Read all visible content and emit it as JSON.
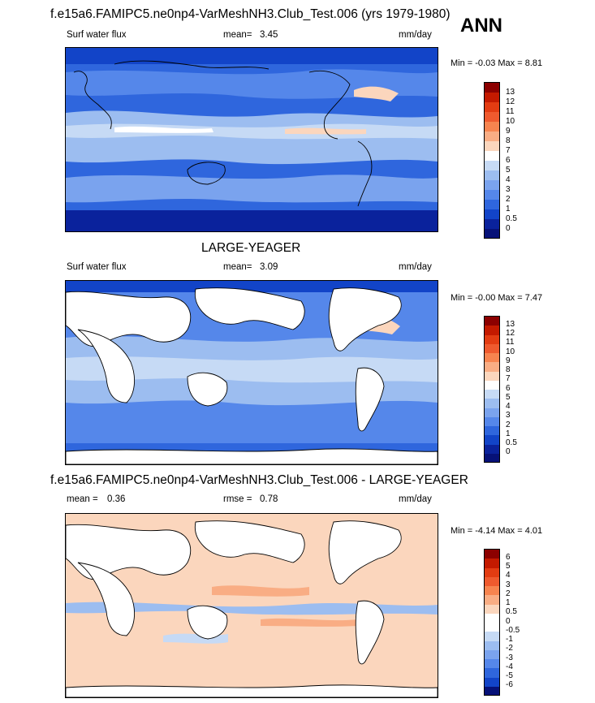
{
  "header": {
    "title": "f.e15a6.FAMIPC5.ne0np4-VarMeshNH3.Club_Test.006 (yrs 1979-1980)",
    "season": "ANN"
  },
  "panels": [
    {
      "field": "Surf water flux",
      "mean_label": "mean=",
      "mean_value": "3.45",
      "units": "mm/day",
      "minmax": "Min =  -0.03 Max =   8.81",
      "levels": [
        "13",
        "12",
        "11",
        "10",
        "9",
        "8",
        "7",
        "6",
        "5",
        "4",
        "3",
        "2",
        "1",
        "0.5",
        "0"
      ],
      "colors": [
        "#8c0000",
        "#c41a00",
        "#e33c12",
        "#ef5a2e",
        "#f7844f",
        "#f9ad84",
        "#fbd6bd",
        "#ffffff",
        "#c6daf5",
        "#9cbdf0",
        "#7aa3ee",
        "#5587ea",
        "#2f66dd",
        "#1244c8",
        "#0a229c",
        "#061178"
      ]
    },
    {
      "subtitle": "LARGE-YEAGER",
      "field": "Surf water flux",
      "mean_label": "mean=",
      "mean_value": "3.09",
      "units": "mm/day",
      "minmax": "Min =  -0.00 Max =   7.47",
      "levels": [
        "13",
        "12",
        "11",
        "10",
        "9",
        "8",
        "7",
        "6",
        "5",
        "4",
        "3",
        "2",
        "1",
        "0.5",
        "0"
      ],
      "colors": [
        "#8c0000",
        "#c41a00",
        "#e33c12",
        "#ef5a2e",
        "#f7844f",
        "#f9ad84",
        "#fbd6bd",
        "#ffffff",
        "#c6daf5",
        "#9cbdf0",
        "#7aa3ee",
        "#5587ea",
        "#2f66dd",
        "#1244c8",
        "#0a229c",
        "#061178"
      ]
    },
    {
      "title": "f.e15a6.FAMIPC5.ne0np4-VarMeshNH3.Club_Test.006 - LARGE-YEAGER",
      "mean_label": "mean =",
      "mean_value": "0.36",
      "rmse_label": "rmse =",
      "rmse_value": "0.78",
      "units": "mm/day",
      "minmax": "Min =  -4.14 Max =   4.01",
      "levels": [
        "6",
        "5",
        "4",
        "3",
        "2",
        "1",
        "0.5",
        "0",
        "-0.5",
        "-1",
        "-2",
        "-3",
        "-4",
        "-5",
        "-6"
      ],
      "colors": [
        "#8c0000",
        "#c41a00",
        "#e33c12",
        "#ef5a2e",
        "#f7844f",
        "#f9ad84",
        "#fbd6bd",
        "#ffffff",
        "#ffffff",
        "#c6daf5",
        "#9cbdf0",
        "#7aa3ee",
        "#5587ea",
        "#2f66dd",
        "#1244c8",
        "#061178"
      ]
    }
  ],
  "chart_data": [
    {
      "type": "heatmap",
      "title": "f.e15a6.FAMIPC5.ne0np4-VarMeshNH3.Club_Test.006 (yrs 1979-1980)",
      "variable": "Surf water flux",
      "units": "mm/day",
      "mean": 3.45,
      "min": -0.03,
      "max": 8.81,
      "contour_levels": [
        0,
        0.5,
        1,
        2,
        3,
        4,
        5,
        6,
        7,
        8,
        9,
        10,
        11,
        12,
        13
      ]
    },
    {
      "type": "heatmap",
      "title": "LARGE-YEAGER",
      "variable": "Surf water flux",
      "units": "mm/day",
      "mean": 3.09,
      "min": -0.0,
      "max": 7.47,
      "contour_levels": [
        0,
        0.5,
        1,
        2,
        3,
        4,
        5,
        6,
        7,
        8,
        9,
        10,
        11,
        12,
        13
      ]
    },
    {
      "type": "heatmap",
      "title": "f.e15a6.FAMIPC5.ne0np4-VarMeshNH3.Club_Test.006 - LARGE-YEAGER",
      "units": "mm/day",
      "mean": 0.36,
      "rmse": 0.78,
      "min": -4.14,
      "max": 4.01,
      "contour_levels": [
        -6,
        -5,
        -4,
        -3,
        -2,
        -1,
        -0.5,
        0,
        0.5,
        1,
        2,
        3,
        4,
        5,
        6
      ]
    }
  ]
}
